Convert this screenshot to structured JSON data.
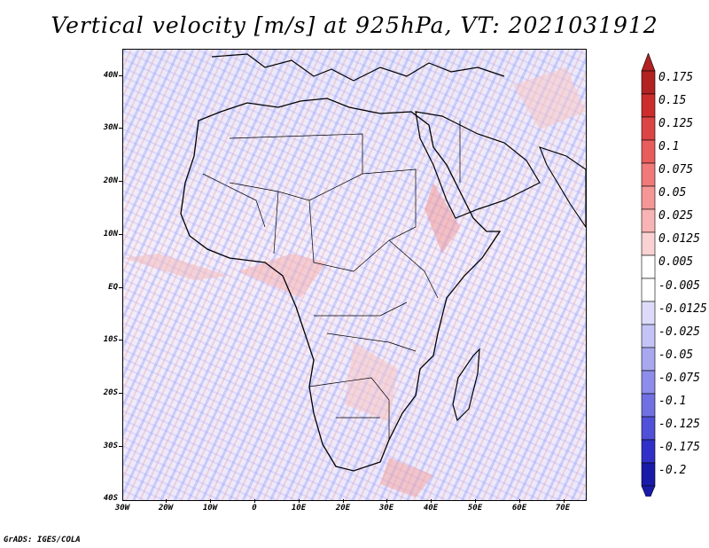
{
  "title": "Vertical velocity [m/s] at 925hPa, VT: 2021031912",
  "credit": "GrADS: IGES/COLA",
  "axes": {
    "latitude_labels": [
      "40N",
      "30N",
      "20N",
      "10N",
      "EQ",
      "10S",
      "20S",
      "30S",
      "40S"
    ],
    "longitude_labels": [
      "30W",
      "20W",
      "10W",
      "0",
      "10E",
      "20E",
      "30E",
      "40E",
      "50E",
      "60E",
      "70E"
    ],
    "lat_range": [
      -40,
      45
    ],
    "lon_range": [
      -30,
      75
    ]
  },
  "colorbar": {
    "labels": [
      "0.175",
      "0.15",
      "0.125",
      "0.1",
      "0.075",
      "0.05",
      "0.025",
      "0.0125",
      "0.005",
      "-0.005",
      "-0.0125",
      "-0.025",
      "-0.05",
      "-0.075",
      "-0.1",
      "-0.125",
      "-0.175",
      "-0.2"
    ],
    "colors": [
      "#b22222",
      "#cd2c2c",
      "#dc4545",
      "#e85c5c",
      "#f07a7a",
      "#f59797",
      "#f8b4b4",
      "#fbd2d2",
      "#ffffff",
      "#ffffff",
      "#dcdcfa",
      "#c3c3f5",
      "#a8a8f0",
      "#8d8deb",
      "#7070e3",
      "#5050d8",
      "#3030c8",
      "#1a1aa8"
    ]
  }
}
